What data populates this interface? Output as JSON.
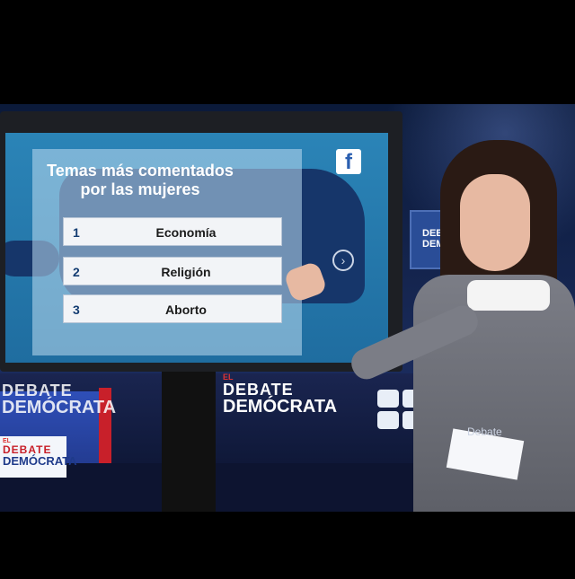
{
  "broadcast": {
    "screen_title_line1": "Temas más comentados",
    "screen_title_line2": "por las mujeres",
    "ranking": [
      {
        "rank": "1",
        "topic": "Economía"
      },
      {
        "rank": "2",
        "topic": "Religión"
      },
      {
        "rank": "3",
        "topic": "Aborto"
      }
    ],
    "social_icon": "facebook-icon",
    "next_icon": "chevron-right-icon"
  },
  "branding": {
    "logo_el": "EL",
    "logo_line1": "DEBATE",
    "logo_line2": "DEMÓCRATA",
    "hashtag_fragment": "Debate"
  },
  "colors": {
    "screen_blue": "#2b84b7",
    "map_navy": "#16366a",
    "accent_red": "#c8202a"
  }
}
